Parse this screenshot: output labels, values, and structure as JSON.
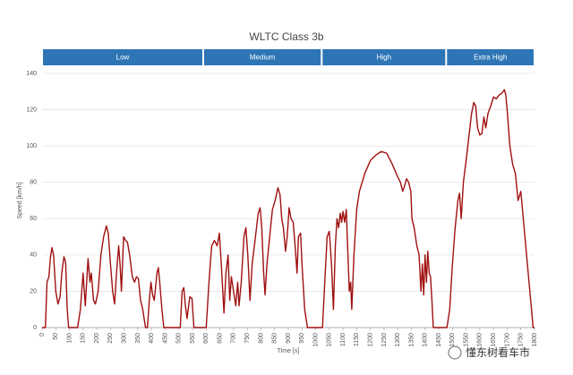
{
  "chart_data": {
    "type": "line",
    "title": "WLTC Class 3b",
    "xlabel": "Time [s]",
    "ylabel": "Speed [km/h]",
    "phases": [
      {
        "label": "Low",
        "start": 0,
        "end": 589
      },
      {
        "label": "Medium",
        "start": 589,
        "end": 1022
      },
      {
        "label": "High",
        "start": 1022,
        "end": 1477
      },
      {
        "label": "Extra High",
        "start": 1477,
        "end": 1800
      }
    ],
    "phase_color": "#2e75b6",
    "xlim": [
      0,
      1800
    ],
    "ylim": [
      0,
      140
    ],
    "yticks": [
      0,
      20,
      40,
      60,
      80,
      100,
      120,
      140
    ],
    "xticks": [
      0,
      50,
      100,
      150,
      200,
      250,
      300,
      350,
      400,
      450,
      500,
      550,
      600,
      650,
      700,
      750,
      800,
      850,
      900,
      950,
      1000,
      1050,
      1100,
      1150,
      1200,
      1250,
      1300,
      1350,
      1400,
      1450,
      1500,
      1550,
      1600,
      1650,
      1700,
      1750,
      1800
    ],
    "grid": true,
    "series": [
      {
        "name": "Speed",
        "color": "#a01010",
        "x": [
          0,
          12,
          18,
          25,
          30,
          36,
          42,
          50,
          58,
          66,
          72,
          80,
          86,
          92,
          97,
          130,
          140,
          150,
          158,
          168,
          175,
          180,
          188,
          195,
          205,
          215,
          225,
          235,
          242,
          250,
          258,
          265,
          272,
          280,
          285,
          290,
          298,
          305,
          312,
          320,
          330,
          338,
          345,
          352,
          360,
          368,
          378,
          385,
          392,
          398,
          404,
          410,
          420,
          425,
          430,
          438,
          445,
          505,
          512,
          518,
          524,
          530,
          540,
          548,
          555,
          600,
          610,
          620,
          630,
          640,
          648,
          655,
          665,
          672,
          680,
          686,
          692,
          700,
          708,
          715,
          720,
          728,
          738,
          745,
          752,
          760,
          768,
          780,
          790,
          797,
          803,
          810,
          815,
          822,
          832,
          842,
          852,
          862,
          870,
          876,
          882,
          890,
          896,
          903,
          910,
          918,
          925,
          932,
          937,
          945,
          950,
          960,
          970,
          1025,
          1035,
          1042,
          1050,
          1058,
          1065,
          1072,
          1078,
          1084,
          1090,
          1095,
          1100,
          1106,
          1112,
          1118,
          1123,
          1128,
          1132,
          1140,
          1150,
          1160,
          1180,
          1200,
          1220,
          1240,
          1260,
          1280,
          1300,
          1310,
          1318,
          1325,
          1332,
          1340,
          1348,
          1352,
          1360,
          1370,
          1378,
          1385,
          1390,
          1395,
          1400,
          1405,
          1410,
          1415,
          1420,
          1425,
          1430,
          1480,
          1490,
          1500,
          1510,
          1520,
          1526,
          1532,
          1540,
          1550,
          1560,
          1570,
          1578,
          1585,
          1592,
          1600,
          1608,
          1615,
          1622,
          1630,
          1640,
          1650,
          1660,
          1670,
          1680,
          1690,
          1695,
          1700,
          1710,
          1720,
          1730,
          1740,
          1750,
          1765,
          1780,
          1795,
          1800
        ],
        "values": [
          0,
          0,
          25,
          28,
          38,
          44,
          40,
          20,
          13,
          17,
          30,
          39,
          36,
          10,
          0,
          0,
          10,
          30,
          12,
          38,
          25,
          30,
          15,
          13,
          20,
          40,
          50,
          56,
          52,
          35,
          20,
          13,
          30,
          45,
          35,
          20,
          50,
          48,
          47,
          40,
          28,
          25,
          28,
          27,
          15,
          10,
          0,
          0,
          15,
          25,
          18,
          15,
          30,
          33,
          25,
          10,
          0,
          0,
          20,
          22,
          12,
          5,
          17,
          16,
          0,
          0,
          25,
          45,
          48,
          45,
          52,
          35,
          8,
          30,
          40,
          15,
          28,
          20,
          12,
          25,
          12,
          25,
          50,
          55,
          40,
          15,
          35,
          50,
          63,
          66,
          55,
          30,
          18,
          35,
          50,
          65,
          70,
          77,
          73,
          60,
          55,
          42,
          50,
          66,
          60,
          58,
          45,
          30,
          50,
          52,
          35,
          10,
          0,
          0,
          30,
          50,
          53,
          35,
          10,
          45,
          60,
          55,
          63,
          58,
          64,
          58,
          65,
          40,
          20,
          25,
          10,
          40,
          65,
          75,
          85,
          92,
          95,
          97,
          96,
          90,
          83,
          80,
          75,
          78,
          82,
          80,
          75,
          60,
          55,
          45,
          40,
          20,
          35,
          18,
          40,
          25,
          42,
          30,
          28,
          15,
          0,
          0,
          10,
          35,
          55,
          70,
          74,
          60,
          80,
          92,
          105,
          118,
          124,
          122,
          110,
          106,
          107,
          116,
          110,
          118,
          122,
          127,
          126,
          128,
          129,
          131,
          128,
          120,
          100,
          90,
          85,
          70,
          75,
          50,
          25,
          0,
          0
        ]
      }
    ]
  },
  "watermark": "懂东树看车市"
}
